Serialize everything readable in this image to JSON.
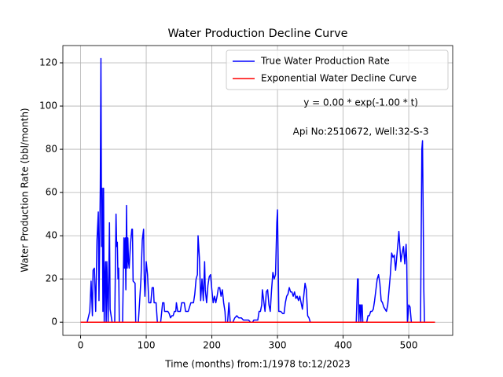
{
  "chart_data": {
    "type": "line",
    "title": "Water Production Decline Curve",
    "xlabel": "Time (months) from:1/1978 to:12/2023",
    "ylabel": "Water Production Rate (bbl/month)",
    "annotations": [
      "y = 0.00 * exp(-1.00 * t)",
      "Api No:2510672, Well:32-S-3"
    ],
    "xlim": [
      -27,
      567
    ],
    "ylim": [
      -6.1,
      128
    ],
    "xticks": [
      0,
      100,
      200,
      300,
      400,
      500
    ],
    "yticks": [
      0,
      20,
      40,
      60,
      80,
      100,
      120
    ],
    "grid": true,
    "legend": "upper right",
    "series": [
      {
        "name": "True Water Production Rate",
        "color": "#0000ff",
        "x": [
          0,
          10,
          14,
          16,
          18,
          19,
          21,
          23,
          25,
          27,
          28,
          30,
          31,
          32,
          33,
          34,
          35,
          36,
          37,
          38,
          39,
          40,
          42,
          44,
          45,
          47,
          48,
          52,
          54,
          55,
          56,
          57,
          58,
          59,
          64,
          66,
          67,
          68,
          69,
          70,
          71,
          72,
          73,
          74,
          76,
          78,
          79,
          80,
          83,
          84,
          88,
          92,
          94,
          96,
          97,
          98,
          100,
          102,
          104,
          107,
          109,
          111,
          112,
          115,
          117,
          122,
          125,
          127,
          128,
          133,
          135,
          137,
          139,
          141,
          143,
          145,
          146,
          148,
          152,
          154,
          158,
          160,
          164,
          168,
          172,
          174,
          176,
          178,
          179,
          181,
          183,
          185,
          187,
          189,
          190,
          192,
          194,
          196,
          198,
          200,
          202,
          204,
          206,
          208,
          210,
          212,
          214,
          216,
          218,
          220,
          221,
          224,
          226,
          228,
          232,
          235,
          238,
          241,
          245,
          248,
          252,
          256,
          259,
          262,
          264,
          270,
          272,
          274,
          276,
          277,
          279,
          281,
          283,
          285,
          287,
          289,
          291,
          293,
          295,
          297,
          299,
          300,
          301,
          302,
          305,
          308,
          310,
          312,
          314,
          316,
          318,
          320,
          322,
          324,
          326,
          328,
          330,
          332,
          334,
          336,
          338,
          340,
          342,
          344,
          346,
          348,
          350,
          420,
          422,
          423,
          424,
          425,
          426,
          427,
          428,
          429,
          430,
          432,
          436,
          438,
          440,
          442,
          444,
          446,
          448,
          450,
          452,
          454,
          456,
          458,
          460,
          462,
          464,
          466,
          468,
          470,
          472,
          474,
          476,
          478,
          480,
          482,
          484,
          485,
          486,
          488,
          490,
          492,
          494,
          496,
          497,
          498,
          500,
          502,
          504,
          518,
          520,
          521,
          522,
          523,
          524,
          540
        ],
        "values": [
          0,
          0,
          5,
          19,
          3,
          24,
          25,
          5,
          38,
          51,
          10,
          62,
          122,
          35,
          62,
          5,
          62,
          0,
          20,
          28,
          0,
          28,
          0,
          46,
          6,
          2,
          0,
          0,
          50,
          35,
          37,
          20,
          25,
          0,
          0,
          39,
          25,
          39,
          15,
          54,
          25,
          39,
          28,
          25,
          36,
          43,
          43,
          19,
          18,
          0,
          0,
          20,
          38,
          43,
          20,
          12,
          28,
          22,
          9,
          9,
          16,
          16,
          9,
          9,
          0,
          0,
          9,
          9,
          5,
          5,
          4,
          2,
          3,
          3,
          5,
          5,
          9,
          5,
          5,
          9,
          9,
          5,
          5,
          9,
          9,
          13,
          20,
          22,
          40,
          30,
          10,
          20,
          10,
          28,
          15,
          9,
          17,
          21,
          22,
          15,
          9,
          12,
          9,
          12,
          16,
          16,
          12,
          15,
          9,
          5,
          0,
          0,
          9,
          0,
          0,
          2,
          3,
          2,
          2,
          1,
          1,
          1,
          0,
          0,
          1,
          1,
          5,
          5,
          8,
          15,
          10,
          5,
          14,
          15,
          8,
          5,
          15,
          23,
          20,
          22,
          46,
          52,
          30,
          5,
          5,
          4,
          4,
          9,
          12,
          13,
          16,
          14,
          14,
          12,
          14,
          11,
          12,
          10,
          12,
          9,
          6,
          12,
          18,
          15,
          3,
          2,
          0,
          0,
          20,
          20,
          0,
          8,
          8,
          0,
          8,
          8,
          0,
          0,
          0,
          3,
          3,
          5,
          5,
          6,
          10,
          15,
          20,
          22,
          18,
          10,
          9,
          7,
          6,
          5,
          8,
          15,
          22,
          32,
          30,
          31,
          24,
          31,
          38,
          42,
          37,
          28,
          32,
          35,
          27,
          36,
          28,
          0,
          8,
          7,
          0,
          0,
          80,
          84,
          50,
          15,
          0,
          0
        ]
      },
      {
        "name": "Exponential Water Decline Curve",
        "color": "#ff0000",
        "x": [
          0,
          540
        ],
        "values": [
          0,
          0
        ]
      }
    ]
  }
}
